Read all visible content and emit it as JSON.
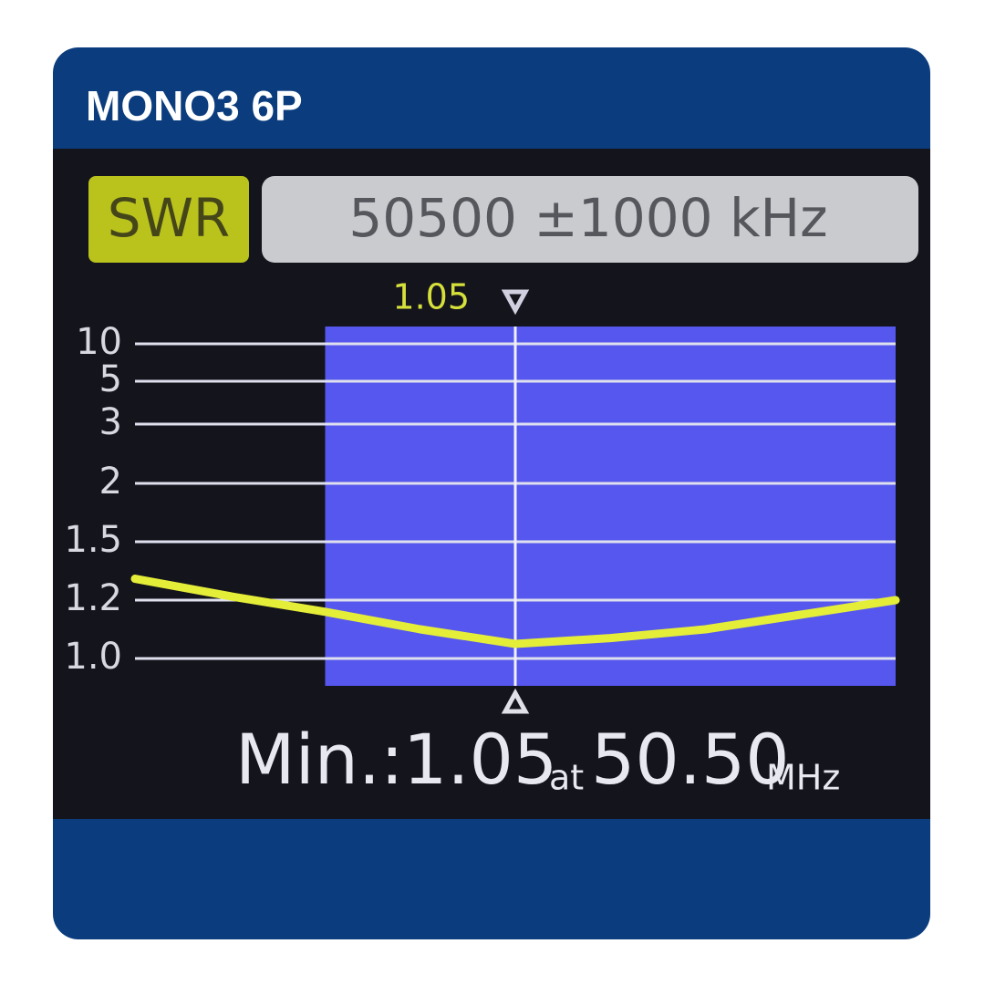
{
  "header": {
    "title": "MONO3 6P"
  },
  "chart_data": {
    "type": "line",
    "mode": "SWR",
    "span": "50500 ±1000 kHz",
    "x": [
      49500,
      49750,
      50000,
      50250,
      50500,
      50750,
      51000,
      51250,
      51500
    ],
    "values": [
      1.31,
      1.22,
      1.16,
      1.1,
      1.05,
      1.07,
      1.1,
      1.15,
      1.2
    ],
    "color": "#e4ee38",
    "xlim": [
      49500,
      51500
    ],
    "ylim": [
      1,
      10
    ],
    "yticks": [
      {
        "value": 1,
        "label": "1.0"
      },
      1.2,
      1.5,
      2,
      3,
      5,
      10
    ],
    "grid": true,
    "band": [
      50000,
      51500
    ],
    "band_color": "#5657ee",
    "marker": {
      "x": 50500,
      "label": "1.05"
    },
    "readout": {
      "label": "Min.:",
      "swr": "1.05",
      "at": "at",
      "freq": "50.50",
      "unit": "MHz"
    }
  }
}
